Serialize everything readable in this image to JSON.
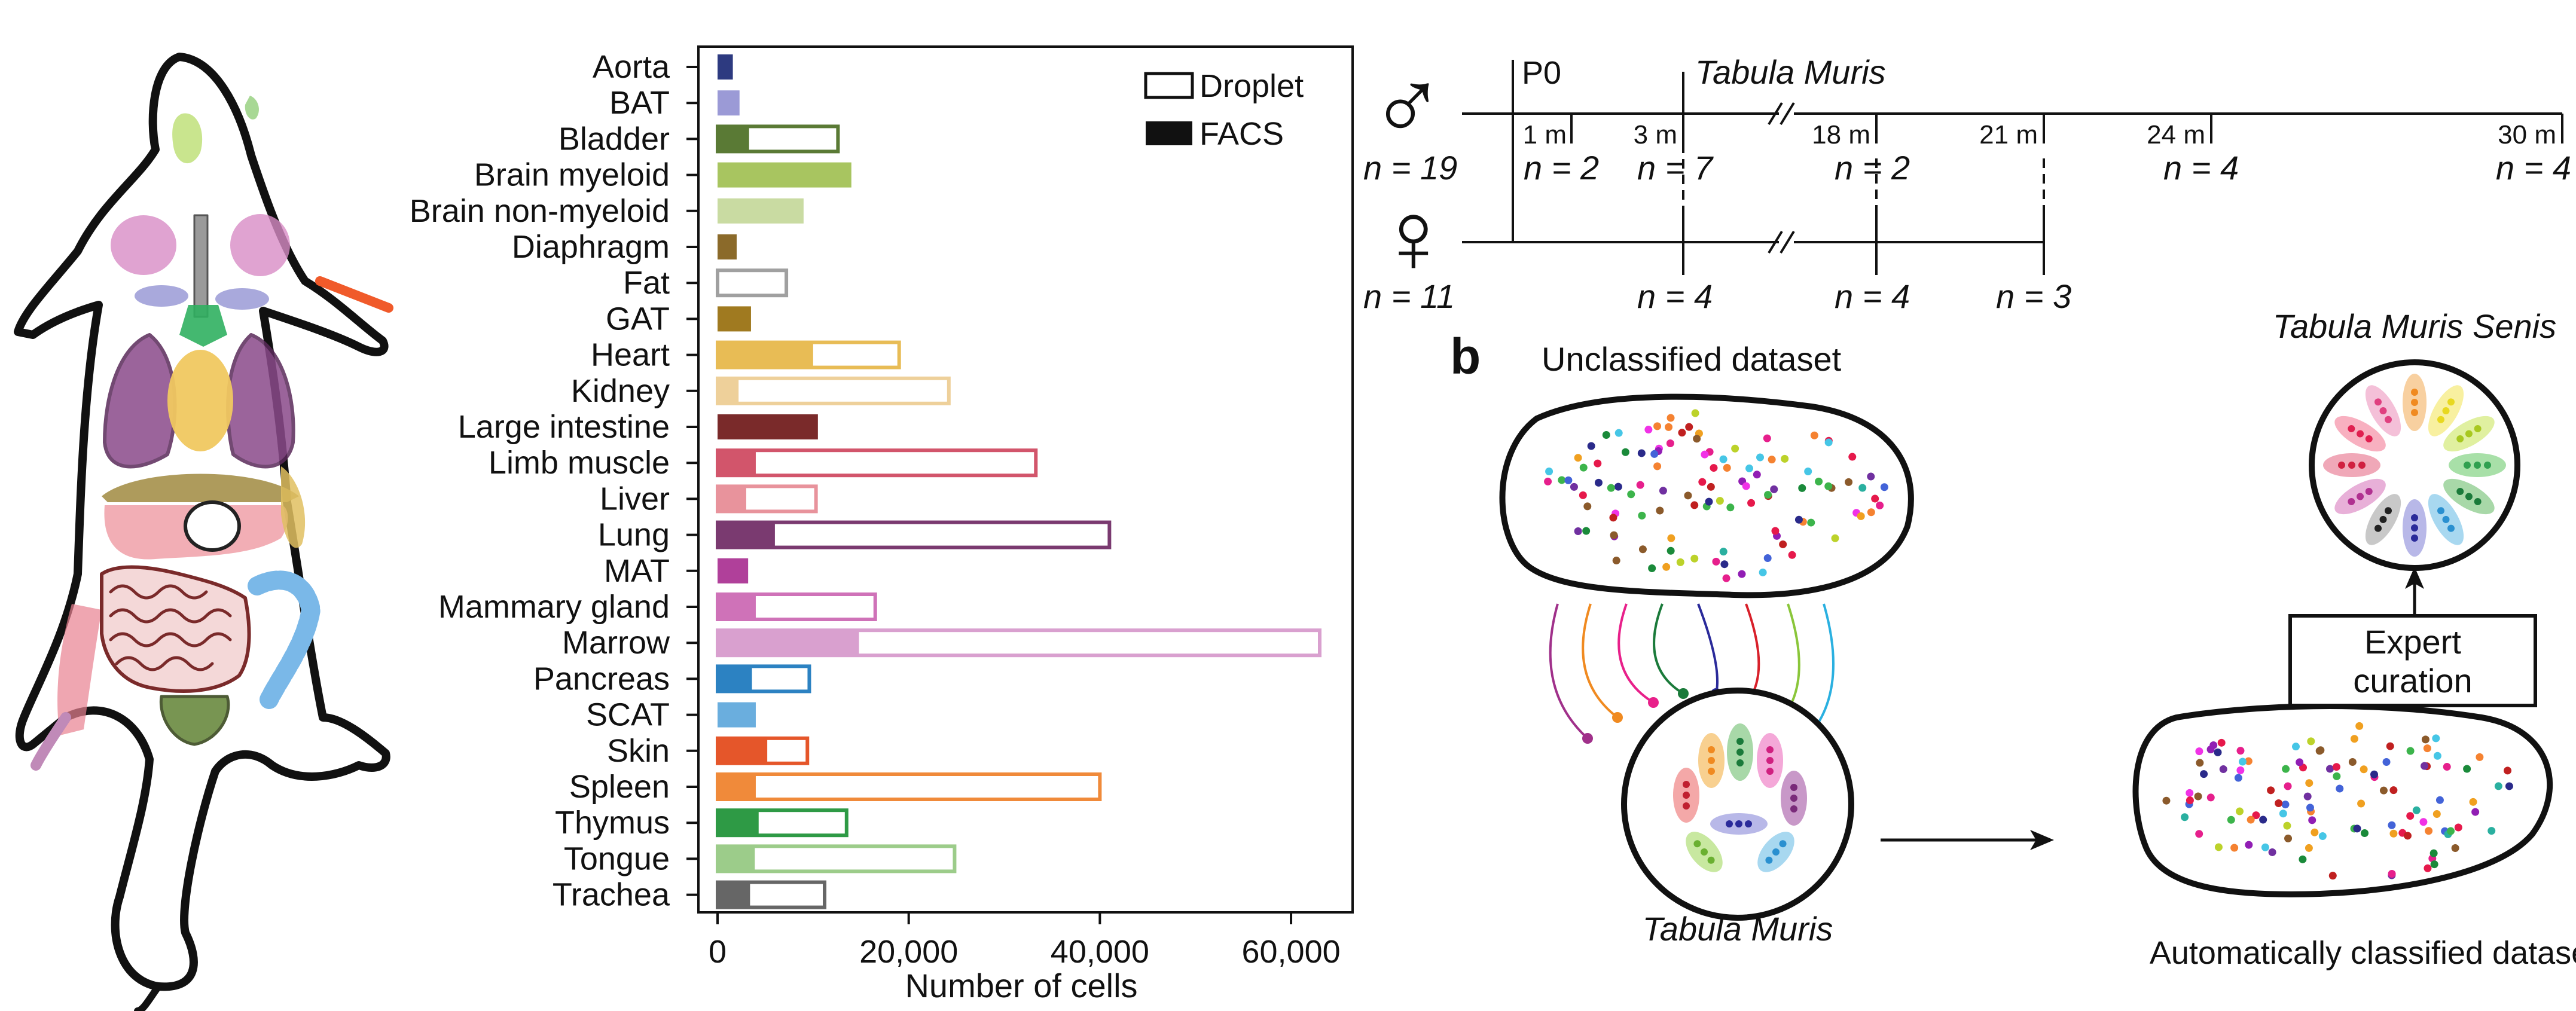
{
  "chart_data": {
    "type": "bar",
    "categories": [
      "Aorta",
      "BAT",
      "Bladder",
      "Brain myeloid",
      "Brain non-myeloid",
      "Diaphragm",
      "Fat",
      "GAT",
      "Heart",
      "Kidney",
      "Large intestine",
      "Limb muscle",
      "Liver",
      "Lung",
      "MAT",
      "Mammary gland",
      "Marrow",
      "Pancreas",
      "SCAT",
      "Skin",
      "Spleen",
      "Thymus",
      "Tongue",
      "Trachea"
    ],
    "colors": [
      "#2d3a80",
      "#9b9ad6",
      "#5a7a35",
      "#a8c560",
      "#c9dba2",
      "#8b6a2a",
      "#a0a0a0",
      "#a07a20",
      "#e8bc55",
      "#eed09a",
      "#7a2a2a",
      "#d2556b",
      "#e8939c",
      "#7a3a70",
      "#b0409a",
      "#cf72b8",
      "#d9a0cf",
      "#2c82c2",
      "#6aaede",
      "#e5562a",
      "#f08a3a",
      "#2e9a45",
      "#9ccc8a",
      "#666666"
    ],
    "series": [
      {
        "name": "FACS",
        "values": [
          1600,
          2300,
          3300,
          14000,
          9000,
          2000,
          0,
          3500,
          10000,
          2200,
          10500,
          4000,
          3000,
          6000,
          3200,
          4000,
          14800,
          3600,
          4000,
          5200,
          4000,
          4300,
          3900,
          3400
        ]
      },
      {
        "name": "Droplet",
        "values": [
          0,
          0,
          12600,
          0,
          0,
          0,
          7200,
          0,
          19000,
          24200,
          0,
          33300,
          10300,
          41000,
          0,
          16500,
          63000,
          9600,
          0,
          9400,
          40000,
          13500,
          24800,
          11200
        ]
      }
    ],
    "legend": [
      {
        "name": "Droplet",
        "style": "outline"
      },
      {
        "name": "FACS",
        "style": "filled"
      }
    ],
    "xlabel": "Number of cells",
    "xlim": [
      0,
      65000
    ],
    "xticks": [
      0,
      20000,
      40000,
      60000
    ],
    "xtick_labels": [
      "0",
      "20,000",
      "40,000",
      "60,000"
    ]
  },
  "timeline": {
    "male_symbol": "♂",
    "female_symbol": "♀",
    "title": "Tabula Muris",
    "p0_label": "P0",
    "time_labels": [
      "1 m",
      "3 m",
      "18 m",
      "21 m",
      "24 m",
      "30 m"
    ],
    "male_counts": [
      "n = 19",
      "n = 2",
      "n = 7",
      "n = 2",
      "n = 4",
      "n = 4"
    ],
    "female_counts": [
      "n = 11",
      "n = 4",
      "n = 4",
      "n = 3"
    ]
  },
  "panel_b": {
    "letter": "b",
    "unclassified_title": "Unclassified dataset",
    "tm_label": "Tabula Muris",
    "auto_label": "Automatically classified dataset",
    "curation_line1": "Expert",
    "curation_line2": "curation",
    "tms_label": "Tabula Muris Senis"
  }
}
